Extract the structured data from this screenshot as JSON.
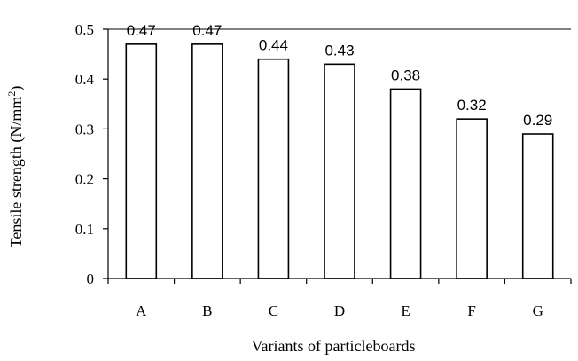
{
  "chart_data": {
    "type": "bar",
    "title": "",
    "xlabel": "Variants of particleboards",
    "ylabel": {
      "main": "Tensile strength  (N/mm",
      "superscript": "2",
      "suffix": ")"
    },
    "categories": [
      "A",
      "B",
      "C",
      "D",
      "E",
      "F",
      "G"
    ],
    "values": [
      0.47,
      0.47,
      0.44,
      0.43,
      0.38,
      0.32,
      0.29
    ],
    "value_labels": [
      "0.47",
      "0.47",
      "0.44",
      "0.43",
      "0.38",
      "0.32",
      "0.29"
    ],
    "ylim": [
      0,
      0.5
    ],
    "y_ticks": [
      0,
      0.1,
      0.2,
      0.3,
      0.4,
      0.5
    ],
    "y_tick_labels": [
      "0",
      "0.1",
      "0.2",
      "0.3",
      "0.4",
      "0.5"
    ],
    "grid": {
      "horizontal": true,
      "vertical": false
    },
    "legend": "none",
    "colors": {
      "bar_fill": "#ffffff",
      "bar_stroke": "#000000",
      "axis": "#000000",
      "text": "#000000"
    }
  }
}
